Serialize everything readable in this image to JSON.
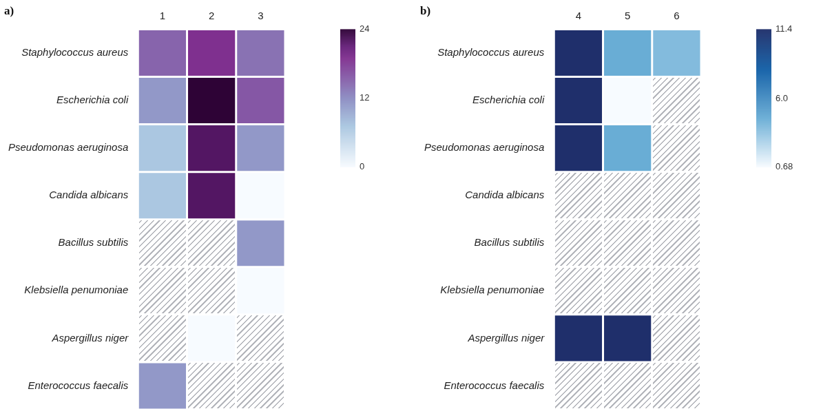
{
  "chart_data": [
    {
      "type": "heatmap",
      "title": "a)",
      "categories": [
        "1",
        "2",
        "3"
      ],
      "y_categories": [
        "Staphylococcus aureus",
        "Escherichia coli",
        "Pseudomonas aeruginosa",
        "Candida albicans",
        "Bacillus subtilis",
        "Klebsiella penumoniae",
        "Aspergillus niger",
        "Enterococcus faecalis"
      ],
      "cells": [
        [
          15,
          19,
          14
        ],
        [
          11,
          24,
          16
        ],
        [
          7,
          22,
          11
        ],
        [
          7,
          22,
          0
        ],
        [
          null,
          null,
          11
        ],
        [
          null,
          null,
          0
        ],
        [
          null,
          0,
          null
        ],
        [
          11,
          null,
          null
        ]
      ],
      "clim": [
        0,
        24
      ],
      "cticks": [
        0,
        12,
        24
      ]
    },
    {
      "type": "heatmap",
      "title": "b)",
      "categories": [
        "4",
        "5",
        "6"
      ],
      "y_categories": [
        "Staphylococcus aureus",
        "Escherichia coli",
        "Pseudomonas aeruginosa",
        "Candida albicans",
        "Bacillus subtilis",
        "Klebsiella penumoniae",
        "Aspergillus niger",
        "Enterococcus faecalis"
      ],
      "cells": [
        [
          11.4,
          4.5,
          3.8
        ],
        [
          11.4,
          0.68,
          null
        ],
        [
          11.4,
          4.5,
          null
        ],
        [
          null,
          null,
          null
        ],
        [
          null,
          null,
          null
        ],
        [
          null,
          null,
          null
        ],
        [
          11.4,
          11.4,
          null
        ],
        [
          null,
          null,
          null
        ]
      ],
      "clim": [
        0.68,
        11.4
      ],
      "cticks": [
        0.68,
        {
          "value": 6,
          "label": "6.0"
        },
        11.4
      ]
    }
  ]
}
